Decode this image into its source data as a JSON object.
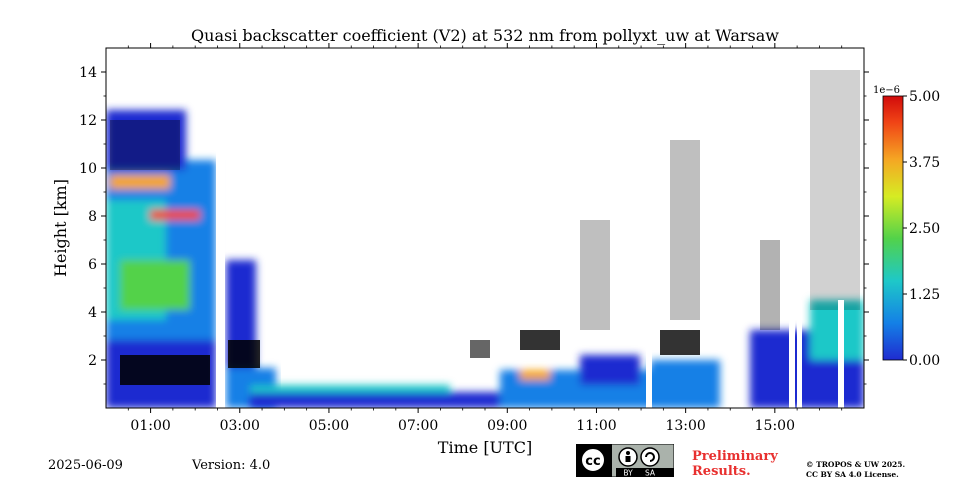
{
  "chart_data": {
    "type": "heatmap",
    "title": "Quasi backscatter coefficient (V2) at 532 nm from pollyxt_uw at Warsaw",
    "xlabel": "Time [UTC]",
    "ylabel": "Height [km]",
    "xlim_hours": [
      0.0,
      17.0
    ],
    "ylim_km": [
      0.0,
      15.0
    ],
    "x_ticks": [
      {
        "hour": 1,
        "label": "01:00"
      },
      {
        "hour": 3,
        "label": "03:00"
      },
      {
        "hour": 5,
        "label": "05:00"
      },
      {
        "hour": 7,
        "label": "07:00"
      },
      {
        "hour": 9,
        "label": "09:00"
      },
      {
        "hour": 11,
        "label": "11:00"
      },
      {
        "hour": 13,
        "label": "13:00"
      },
      {
        "hour": 15,
        "label": "15:00"
      }
    ],
    "y_ticks": [
      {
        "km": 2,
        "label": "2"
      },
      {
        "km": 4,
        "label": "4"
      },
      {
        "km": 6,
        "label": "6"
      },
      {
        "km": 8,
        "label": "8"
      },
      {
        "km": 10,
        "label": "10"
      },
      {
        "km": 12,
        "label": "12"
      },
      {
        "km": 14,
        "label": "14"
      }
    ],
    "colorbar": {
      "exponent_label": "1e−6",
      "range": [
        0.0,
        5.0
      ],
      "ticks": [
        {
          "value": 0.0,
          "label": "0.00"
        },
        {
          "value": 1.25,
          "label": "1.25"
        },
        {
          "value": 2.5,
          "label": "2.50"
        },
        {
          "value": 3.75,
          "label": "3.75"
        },
        {
          "value": 5.0,
          "label": "5.00"
        }
      ],
      "colormap": [
        "#1f2bd0",
        "#1480e6",
        "#1ec8c8",
        "#52d24a",
        "#d6ec23",
        "#f5a623",
        "#f04416",
        "#d10b0b"
      ]
    },
    "data_gaps_hours": [
      [
        2.62,
        2.75
      ],
      [
        11.95,
        12.05
      ],
      [
        14.3,
        14.35
      ],
      [
        15.35,
        15.45
      ],
      [
        15.55,
        15.65
      ],
      [
        16.5,
        16.6
      ]
    ]
  },
  "footer": {
    "date": "2025-06-09",
    "version": "Version: 4.0",
    "preliminary_line1": "Preliminary",
    "preliminary_line2": "Results.",
    "copyright_line1": "© TROPOS & UW 2025.",
    "copyright_line2": "CC BY SA 4.0 License."
  },
  "badge": {
    "cc": "cc",
    "by": "BY",
    "sa": "SA"
  }
}
